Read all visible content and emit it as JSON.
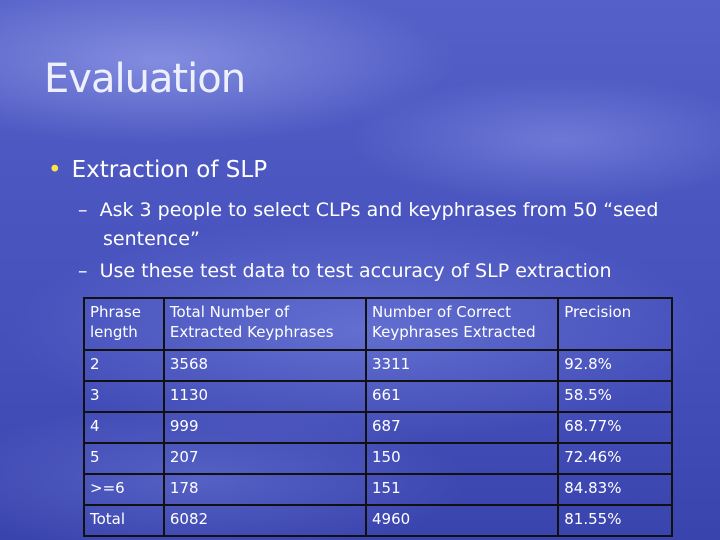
{
  "title": "Evaluation",
  "bullet": "Extraction of SLP",
  "sub_bullets": [
    "Ask 3 people to select CLPs and keyphrases from 50 “seed sentence”",
    "Use these test data to test accuracy of SLP extraction"
  ],
  "table": {
    "header": [
      "Phrase length",
      "Total Number of Extracted Keyphrases",
      "Number of Correct Keyphrases Extracted",
      "Precision"
    ],
    "rows": [
      [
        "2",
        "3568",
        "3311",
        "92.8%"
      ],
      [
        "3",
        "1130",
        "661",
        "58.5%"
      ],
      [
        "4",
        "999",
        "687",
        "68.77%"
      ],
      [
        "5",
        "207",
        "150",
        "72.46%"
      ],
      [
        ">=6",
        "178",
        "151",
        "84.83%"
      ],
      [
        "Total",
        "6082",
        "4960",
        "81.55%"
      ]
    ]
  }
}
